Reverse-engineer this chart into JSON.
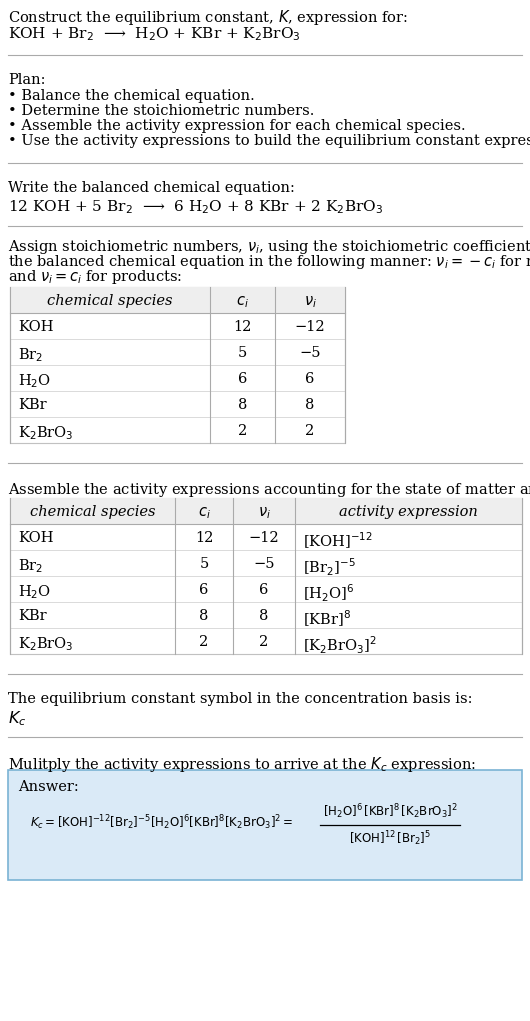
{
  "bg_color": "#ffffff",
  "text_color": "#000000",
  "title_line1": "Construct the equilibrium constant, $K$, expression for:",
  "title_line2": "KOH + Br$_2$  ⟶  H$_2$O + KBr + K$_2$BrO$_3$",
  "plan_header": "Plan:",
  "plan_items": [
    "• Balance the chemical equation.",
    "• Determine the stoichiometric numbers.",
    "• Assemble the activity expression for each chemical species.",
    "• Use the activity expressions to build the equilibrium constant expression."
  ],
  "balanced_header": "Write the balanced chemical equation:",
  "balanced_eq": "12 KOH + 5 Br$_2$  ⟶  6 H$_2$O + 8 KBr + 2 K$_2$BrO$_3$",
  "stoich_header_lines": [
    "Assign stoichiometric numbers, $\\nu_i$, using the stoichiometric coefficients, $c_i$, from",
    "the balanced chemical equation in the following manner: $\\nu_i = -c_i$ for reactants",
    "and $\\nu_i = c_i$ for products:"
  ],
  "table1_cols": [
    "chemical species",
    "$c_i$",
    "$\\nu_i$"
  ],
  "table1_data": [
    [
      "KOH",
      "12",
      "−12"
    ],
    [
      "Br$_2$",
      "5",
      "−5"
    ],
    [
      "H$_2$O",
      "6",
      "6"
    ],
    [
      "KBr",
      "8",
      "8"
    ],
    [
      "K$_2$BrO$_3$",
      "2",
      "2"
    ]
  ],
  "activity_header": "Assemble the activity expressions accounting for the state of matter and $\\nu_i$:",
  "table2_cols": [
    "chemical species",
    "$c_i$",
    "$\\nu_i$",
    "activity expression"
  ],
  "table2_data": [
    [
      "KOH",
      "12",
      "−12",
      "[KOH]$^{-12}$"
    ],
    [
      "Br$_2$",
      "5",
      "−5",
      "[Br$_2$]$^{-5}$"
    ],
    [
      "H$_2$O",
      "6",
      "6",
      "[H$_2$O]$^6$"
    ],
    [
      "KBr",
      "8",
      "8",
      "[KBr]$^8$"
    ],
    [
      "K$_2$BrO$_3$",
      "2",
      "2",
      "[K$_2$BrO$_3$]$^2$"
    ]
  ],
  "kc_header": "The equilibrium constant symbol in the concentration basis is:",
  "kc_symbol": "$K_c$",
  "multiply_header": "Mulitply the activity expressions to arrive at the $K_c$ expression:",
  "answer_box_color": "#daeaf7",
  "answer_box_border": "#7ab3d4",
  "answer_label": "Answer:",
  "font_size": 10.5
}
